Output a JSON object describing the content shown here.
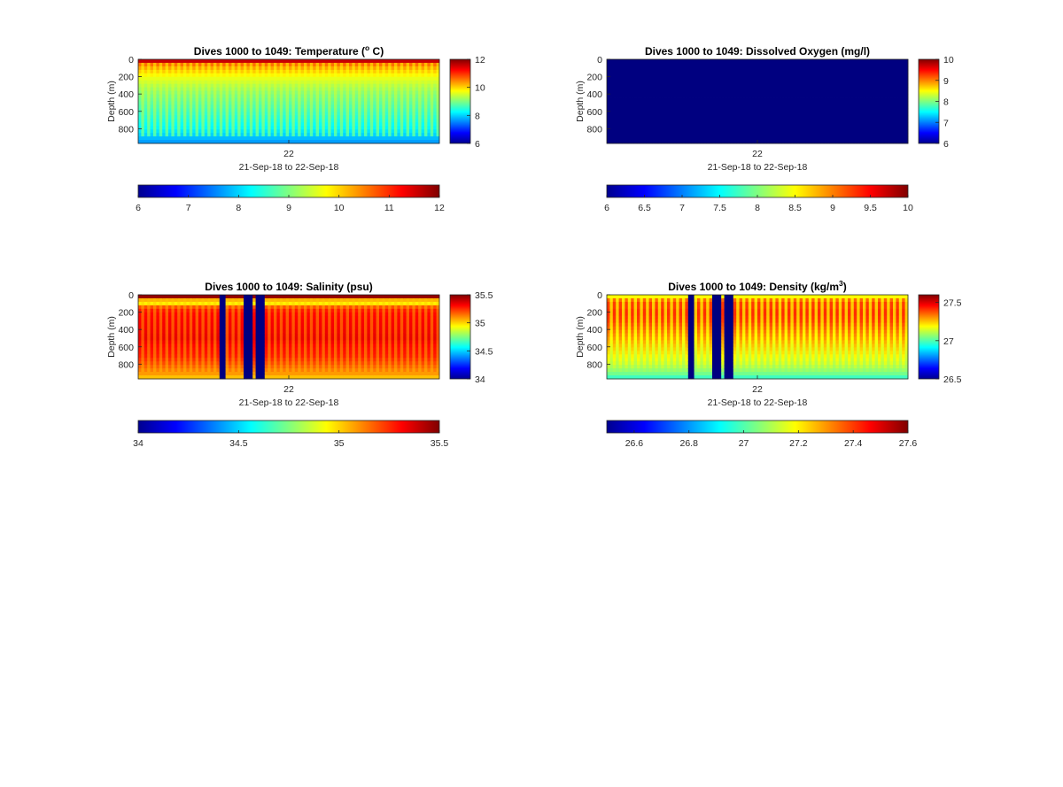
{
  "figure": {
    "charts": [
      {
        "id": "temperature",
        "title_prefix": "Dives 1000 to 1049: Temperature (",
        "title_sup": "o",
        "title_suffix": " C)",
        "ylabel": "Depth (m)",
        "xtick": "22",
        "xlabel": "21-Sep-18 to 22-Sep-18",
        "yticks": [
          "0",
          "200",
          "400",
          "600",
          "800"
        ],
        "colorbar_ticks": [
          "6",
          "8",
          "10",
          "12"
        ],
        "hbar_ticks": [
          "6",
          "7",
          "8",
          "9",
          "10",
          "11",
          "12"
        ]
      },
      {
        "id": "oxygen",
        "title_prefix": "Dives 1000 to 1049: Dissolved Oxygen (mg/l)",
        "title_sup": "",
        "title_suffix": "",
        "ylabel": "Depth (m)",
        "xtick": "22",
        "xlabel": "21-Sep-18 to 22-Sep-18",
        "yticks": [
          "0",
          "200",
          "400",
          "600",
          "800"
        ],
        "colorbar_ticks": [
          "6",
          "7",
          "8",
          "9",
          "10"
        ],
        "hbar_ticks": [
          "6",
          "6.5",
          "7",
          "7.5",
          "8",
          "8.5",
          "9",
          "9.5",
          "10"
        ]
      },
      {
        "id": "salinity",
        "title_prefix": "Dives 1000 to 1049: Salinity (psu)",
        "title_sup": "",
        "title_suffix": "",
        "ylabel": "Depth (m)",
        "xtick": "22",
        "xlabel": "21-Sep-18 to 22-Sep-18",
        "yticks": [
          "0",
          "200",
          "400",
          "600",
          "800"
        ],
        "colorbar_ticks": [
          "34",
          "34.5",
          "35",
          "35.5"
        ],
        "hbar_ticks": [
          "34",
          "34.5",
          "35",
          "35.5"
        ]
      },
      {
        "id": "density",
        "title_prefix": "Dives 1000 to 1049: Density (kg/m",
        "title_sup": "3",
        "title_suffix": ")",
        "ylabel": "Depth (m)",
        "xtick": "22",
        "xlabel": "21-Sep-18 to 22-Sep-18",
        "yticks": [
          "0",
          "200",
          "400",
          "600",
          "800"
        ],
        "colorbar_ticks": [
          "26.5",
          "27",
          "27.5"
        ],
        "hbar_ticks": [
          "26.6",
          "26.8",
          "27",
          "27.2",
          "27.4",
          "27.6"
        ]
      }
    ]
  },
  "chart_data": [
    {
      "type": "heatmap",
      "title": "Dives 1000 to 1049: Temperature (o C)",
      "xlabel": "21-Sep-18 to 22-Sep-18",
      "ylabel": "Depth (m)",
      "dives": [
        1000,
        1049
      ],
      "ylim": [
        0,
        970
      ],
      "y_reversed": true,
      "clim": [
        6,
        12
      ],
      "colormap": "jet",
      "profile": {
        "depths": [
          0,
          30,
          60,
          100,
          150,
          200,
          300,
          400,
          500,
          600,
          700,
          800,
          900,
          970
        ],
        "values": [
          11.9,
          11.4,
          10.6,
          10.3,
          10.0,
          9.7,
          9.3,
          9.0,
          8.8,
          8.6,
          8.4,
          8.2,
          7.9,
          7.6
        ]
      },
      "alternating_gap_value": 9.6
    },
    {
      "type": "heatmap",
      "title": "Dives 1000 to 1049: Dissolved Oxygen (mg/l)",
      "xlabel": "21-Sep-18 to 22-Sep-18",
      "ylabel": "Depth (m)",
      "dives": [
        1000,
        1049
      ],
      "ylim": [
        0,
        970
      ],
      "y_reversed": true,
      "clim": [
        6,
        10
      ],
      "colormap": "jet",
      "uniform_value": 6
    },
    {
      "type": "heatmap",
      "title": "Dives 1000 to 1049: Salinity (psu)",
      "xlabel": "21-Sep-18 to 22-Sep-18",
      "ylabel": "Depth (m)",
      "dives": [
        1000,
        1049
      ],
      "ylim": [
        0,
        970
      ],
      "y_reversed": true,
      "clim": [
        34,
        35.5
      ],
      "colormap": "jet",
      "profile": {
        "depths": [
          0,
          30,
          60,
          100,
          150,
          200,
          300,
          400,
          500,
          600,
          700,
          800,
          900,
          970
        ],
        "values": [
          35.5,
          35.45,
          35.05,
          34.95,
          35.25,
          35.3,
          35.32,
          35.33,
          35.35,
          35.3,
          35.28,
          35.2,
          35.1,
          35.0
        ]
      },
      "alternating_gap_value": 35.02,
      "missing_dive_columns": [
        0.28,
        0.365,
        0.405
      ]
    },
    {
      "type": "heatmap",
      "title": "Dives 1000 to 1049: Density (kg/m3)",
      "xlabel": "21-Sep-18 to 22-Sep-18",
      "ylabel": "Depth (m)",
      "dives": [
        1000,
        1049
      ],
      "ylim": [
        0,
        970
      ],
      "y_reversed": true,
      "clim": [
        26.5,
        27.6
      ],
      "colormap": "jet",
      "profile": {
        "depths": [
          0,
          30,
          60,
          100,
          150,
          200,
          300,
          400,
          500,
          600,
          700,
          800,
          900,
          970
        ],
        "values": [
          26.95,
          27.3,
          27.35,
          27.4,
          27.4,
          27.42,
          27.4,
          27.35,
          27.3,
          27.25,
          27.2,
          27.15,
          27.05,
          26.95
        ]
      },
      "alternating_gap_value": 27.05,
      "missing_dive_columns": [
        0.28,
        0.365,
        0.405
      ]
    }
  ]
}
